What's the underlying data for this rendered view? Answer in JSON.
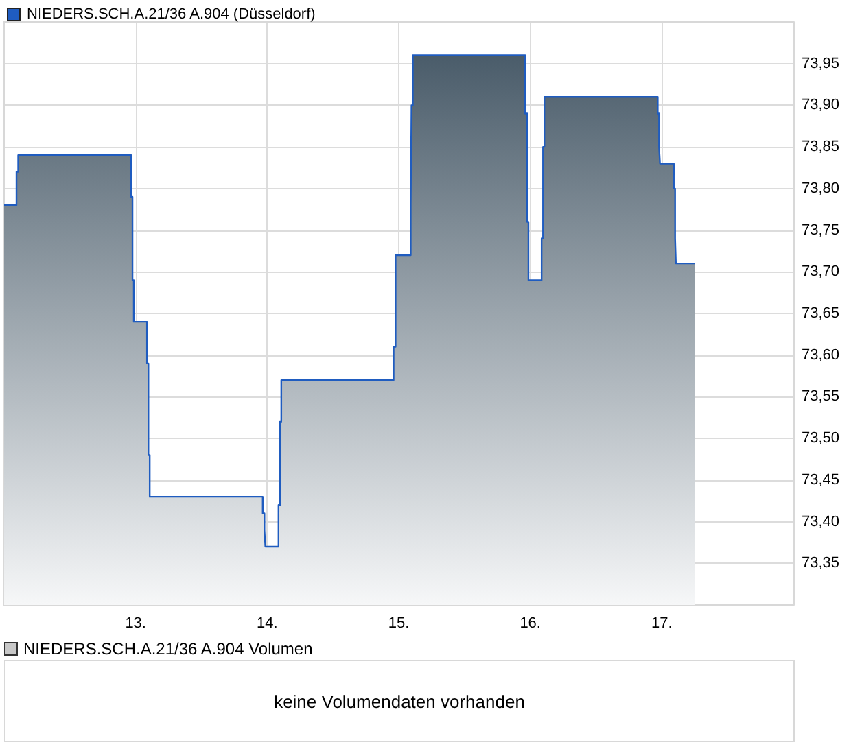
{
  "chart_data": [
    {
      "type": "area",
      "legend": "top left",
      "grid": true,
      "marker": "none",
      "x": [
        12.0,
        12.094,
        12.094,
        12.107,
        12.107,
        12.966,
        12.966,
        12.976,
        12.976,
        12.986,
        12.986,
        13.086,
        13.086,
        13.097,
        13.097,
        13.107,
        13.107,
        13.966,
        13.966,
        13.979,
        13.979,
        13.986,
        13.986,
        14.086,
        14.086,
        14.097,
        14.097,
        14.107,
        14.107,
        14.961,
        14.961,
        14.976,
        14.976,
        15.091,
        15.091,
        15.097,
        15.097,
        15.107,
        15.107,
        15.961,
        15.961,
        15.976,
        15.976,
        15.986,
        15.986,
        16.086,
        16.086,
        16.097,
        16.097,
        16.107,
        16.107,
        16.969,
        16.969,
        16.979,
        16.979,
        16.986,
        16.986,
        17.091,
        17.091,
        17.101,
        17.101,
        17.107,
        17.107,
        17.25
      ],
      "series": [
        {
          "name": "NIEDERS.SCH.A.21/36 A.904 (Düsseldorf)",
          "color": "#1f5cc0",
          "values": [
            73.78,
            73.78,
            73.82,
            73.82,
            73.84,
            73.84,
            73.79,
            73.79,
            73.69,
            73.69,
            73.64,
            73.64,
            73.59,
            73.59,
            73.48,
            73.48,
            73.43,
            73.43,
            73.41,
            73.41,
            73.39,
            73.39,
            73.37,
            73.37,
            73.42,
            73.42,
            73.52,
            73.52,
            73.57,
            73.57,
            73.61,
            73.61,
            73.72,
            73.72,
            73.78,
            73.78,
            73.9,
            73.9,
            73.96,
            73.96,
            73.89,
            73.89,
            73.76,
            73.76,
            73.69,
            73.69,
            73.74,
            73.74,
            73.85,
            73.85,
            73.91,
            73.91,
            73.89,
            73.89,
            73.85,
            73.85,
            73.83,
            73.83,
            73.8,
            73.8,
            73.74,
            73.74,
            73.71,
            73.71
          ]
        }
      ],
      "xlim": [
        12,
        18
      ],
      "xticks": [
        {
          "value": 13,
          "label": "13."
        },
        {
          "value": 14,
          "label": "14."
        },
        {
          "value": 15,
          "label": "15."
        },
        {
          "value": 16,
          "label": "16."
        },
        {
          "value": 17,
          "label": "17."
        }
      ],
      "ylim": [
        73.3,
        74.0
      ],
      "yticks": [
        {
          "value": 73.35,
          "label": "73,35"
        },
        {
          "value": 73.4,
          "label": "73,40"
        },
        {
          "value": 73.45,
          "label": "73,45"
        },
        {
          "value": 73.5,
          "label": "73,50"
        },
        {
          "value": 73.55,
          "label": "73,55"
        },
        {
          "value": 73.6,
          "label": "73,60"
        },
        {
          "value": 73.65,
          "label": "73,65"
        },
        {
          "value": 73.7,
          "label": "73,70"
        },
        {
          "value": 73.75,
          "label": "73,75"
        },
        {
          "value": 73.8,
          "label": "73,80"
        },
        {
          "value": 73.85,
          "label": "73,85"
        },
        {
          "value": 73.9,
          "label": "73,90"
        },
        {
          "value": 73.95,
          "label": "73,95"
        }
      ]
    },
    {
      "type": "other",
      "title": "NIEDERS.SCH.A.21/36 A.904 Volumen",
      "annotations": [
        "keine Volumendaten vorhanden"
      ]
    }
  ]
}
